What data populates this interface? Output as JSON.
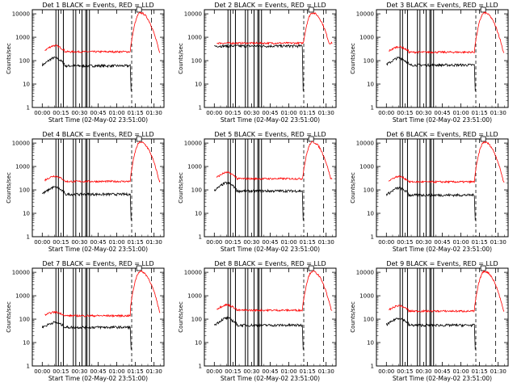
{
  "chart_data": {
    "type": "line",
    "y_scale": "log",
    "ylim": [
      1,
      15000
    ],
    "y_ticks": [
      1,
      10,
      100,
      1000,
      10000
    ],
    "ylabel": "Counts/sec",
    "x_ticks": [
      "00:00",
      "00:15",
      "00:30",
      "00:45",
      "01:00",
      "01:15",
      "01:30"
    ],
    "xlabel": "Start Time (02-May-02 23:51:00)",
    "legend": "BLACK = Events, RED = LLD",
    "series_colors": {
      "events": "#000000",
      "lld": "#ff0000"
    },
    "panels": [
      {
        "title": "Det 1",
        "x_ticks_shown": [
          "00:00",
          "00:15",
          "00:30",
          "00:45",
          "01:00",
          "01:15",
          "01:30"
        ],
        "events_start_min": 0,
        "events_level": 60,
        "lld_level": 240,
        "early_bump": 2.2,
        "gap_minutes": [
          11,
          13,
          17,
          25,
          27,
          32,
          35,
          36,
          38
        ],
        "peak_lld": 11000,
        "peak_time_min": 79,
        "events_end_min": 71
      },
      {
        "title": "Det 2",
        "x_ticks_shown": [
          "00:00",
          "00:15",
          "00:30",
          "00:45",
          "01:00",
          "01:15",
          "01:30"
        ],
        "events_start_min": 0,
        "events_level": 420,
        "lld_level": 560,
        "early_bump": 1.0,
        "gap_minutes": [
          11,
          13,
          17,
          25,
          27,
          32,
          35,
          36,
          38
        ],
        "peak_lld": 11000,
        "peak_time_min": 79,
        "events_end_min": 71
      },
      {
        "title": "Det 3",
        "x_ticks_shown": [
          "00:00",
          "00:15",
          "00:30",
          "00:45",
          "01:00",
          "01:15",
          "01:30"
        ],
        "events_start_min": 0,
        "events_level": 65,
        "lld_level": 230,
        "early_bump": 2.0,
        "gap_minutes": [
          11,
          13,
          17,
          25,
          27,
          32,
          35,
          36,
          38
        ],
        "peak_lld": 11000,
        "peak_time_min": 79,
        "events_end_min": 71
      },
      {
        "title": "Det 4",
        "x_ticks_shown": [
          "00:00",
          "00:15",
          "00:30",
          "00:45",
          "01:00",
          "01:15",
          "01:30"
        ],
        "events_start_min": 0,
        "events_level": 65,
        "lld_level": 230,
        "early_bump": 2.0,
        "gap_minutes": [
          11,
          13,
          17,
          25,
          27,
          32,
          35,
          36,
          38
        ],
        "peak_lld": 11000,
        "peak_time_min": 79,
        "events_end_min": 71
      },
      {
        "title": "Det 5",
        "x_ticks_shown": [
          "00:00",
          "00:15",
          "00:30",
          "00:45",
          "01:00",
          "01:15",
          "01:30"
        ],
        "events_start_min": 0,
        "events_level": 90,
        "lld_level": 300,
        "early_bump": 2.2,
        "gap_minutes": [
          11,
          13,
          17,
          25,
          27,
          32,
          35,
          36,
          38
        ],
        "peak_lld": 11000,
        "peak_time_min": 79,
        "events_end_min": 71
      },
      {
        "title": "Det 6",
        "x_ticks_shown": [
          "00:00",
          "00:15",
          "00:30",
          "00:45",
          "01:00",
          "01:15",
          "01:30"
        ],
        "events_start_min": 0,
        "events_level": 60,
        "lld_level": 220,
        "early_bump": 2.0,
        "gap_minutes": [
          11,
          13,
          17,
          25,
          27,
          32,
          35,
          36,
          38
        ],
        "peak_lld": 11000,
        "peak_time_min": 79,
        "events_end_min": 71
      },
      {
        "title": "Det 7",
        "x_ticks_shown": [
          "00:00",
          "00:15",
          "00:30",
          "00:45",
          "01:00",
          "01:15",
          "01:30"
        ],
        "events_start_min": 0,
        "events_level": 45,
        "lld_level": 140,
        "early_bump": 1.6,
        "gap_minutes": [
          11,
          13,
          17,
          25,
          27,
          32,
          35,
          36,
          38
        ],
        "peak_lld": 11000,
        "peak_time_min": 79,
        "events_end_min": 71
      },
      {
        "title": "Det 8",
        "x_ticks_shown": [
          "00:00",
          "00:15",
          "00:30",
          "00:45",
          "01:00",
          "01:15",
          "01:30"
        ],
        "events_start_min": 0,
        "events_level": 55,
        "lld_level": 240,
        "early_bump": 2.0,
        "gap_minutes": [
          11,
          13,
          17,
          25,
          27,
          32,
          35,
          36,
          38
        ],
        "peak_lld": 11000,
        "peak_time_min": 79,
        "events_end_min": 71
      },
      {
        "title": "Det 9",
        "x_ticks_shown": [
          "00:00",
          "00:15",
          "00:30",
          "00:45",
          "01:00",
          "01:15",
          "01:30"
        ],
        "events_start_min": 0,
        "events_level": 55,
        "lld_level": 220,
        "early_bump": 2.0,
        "gap_minutes": [
          11,
          13,
          17,
          25,
          27,
          32,
          35,
          36,
          38
        ],
        "peak_lld": 11000,
        "peak_time_min": 79,
        "events_end_min": 71
      }
    ]
  }
}
